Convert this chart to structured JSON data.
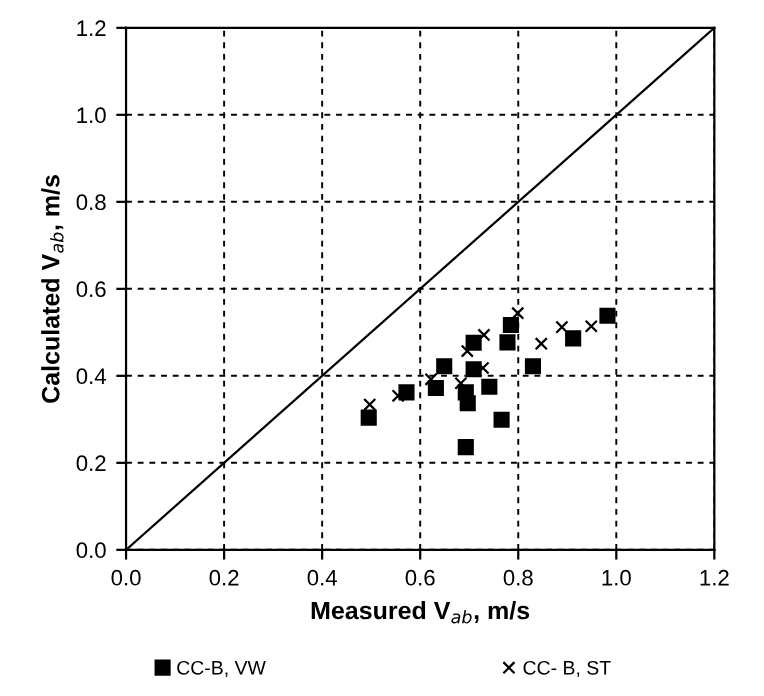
{
  "chart_data": {
    "type": "scatter",
    "xlabel": "Measured V$_{ab}$, m/s",
    "ylabel": "Calculated V$_{ab}$, m/s",
    "xlim": [
      0,
      1.2
    ],
    "ylim": [
      0,
      1.2
    ],
    "xticks": [
      "0.0",
      0.2,
      0.4,
      0.6,
      0.8,
      "1.0",
      1.2
    ],
    "yticks": [
      "0.0",
      0.2,
      0.4,
      0.6,
      0.8,
      "1.0",
      1.2
    ],
    "grid": true,
    "legend": "bottom",
    "series": [
      {
        "name": "CC-B, VW",
        "color": "#000000",
        "marker": "square",
        "x": [
          0.495,
          0.572,
          0.632,
          0.649,
          0.693,
          0.697,
          0.693,
          0.709,
          0.709,
          0.741,
          0.766,
          0.778,
          0.785,
          0.83,
          0.912,
          0.982
        ],
        "values": [
          0.304,
          0.362,
          0.372,
          0.422,
          0.362,
          0.337,
          0.236,
          0.476,
          0.415,
          0.375,
          0.299,
          0.477,
          0.517,
          0.422,
          0.486,
          0.538
        ]
      },
      {
        "name": "CC- B, ST",
        "color": "#000000",
        "marker": "cross",
        "x": [
          0.497,
          0.555,
          0.622,
          0.683,
          0.696,
          0.728,
          0.73,
          0.799,
          0.847,
          0.889,
          0.949
        ],
        "values": [
          0.334,
          0.354,
          0.392,
          0.383,
          0.457,
          0.418,
          0.494,
          0.544,
          0.474,
          0.512,
          0.514
        ]
      },
      {
        "type": "line",
        "color": "#000000",
        "marker": "none",
        "x": [
          0,
          1.2
        ],
        "values": [
          0,
          1.2
        ]
      }
    ]
  }
}
